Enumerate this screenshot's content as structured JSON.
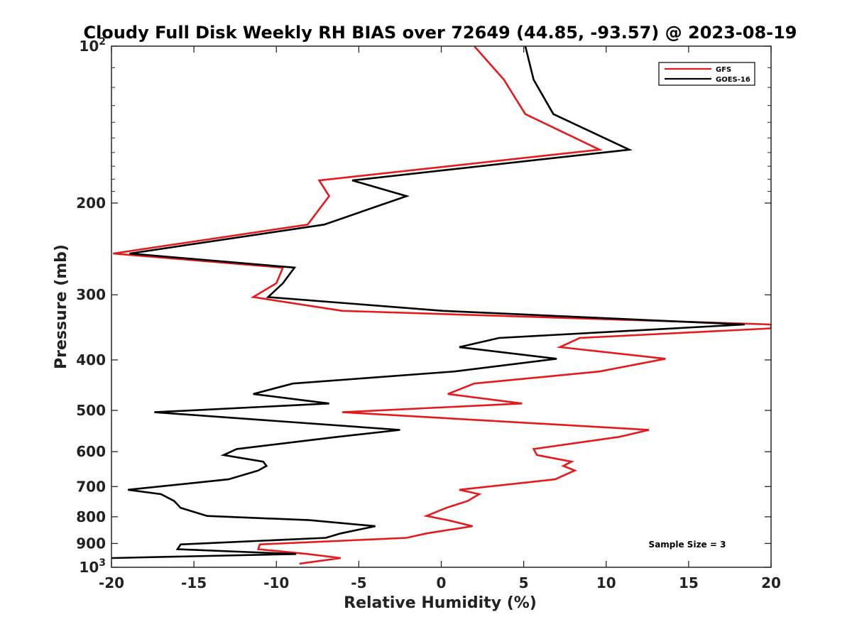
{
  "chart_data": {
    "type": "line",
    "title": "Cloudy Full Disk Weekly RH BIAS over 72649 (44.85, -93.57) @ 2023-08-19",
    "xlabel": "Relative Humidity (%)",
    "ylabel": "Pressure (mb)",
    "xlim": [
      -20,
      20
    ],
    "ylim": [
      100,
      1000
    ],
    "yscale": "log",
    "y_reversed": true,
    "grid": false,
    "legend_position": "top-right",
    "xticks": [
      "-20",
      "-15",
      "-10",
      "-5",
      "0",
      "5",
      "10",
      "15",
      "20"
    ],
    "yticks": [
      {
        "value": 100,
        "base": "10",
        "exp": "2"
      },
      {
        "value": 200,
        "label": "200"
      },
      {
        "value": 300,
        "label": "300"
      },
      {
        "value": 400,
        "label": "400"
      },
      {
        "value": 500,
        "label": "500"
      },
      {
        "value": 600,
        "label": "600"
      },
      {
        "value": 700,
        "label": "700"
      },
      {
        "value": 800,
        "label": "800"
      },
      {
        "value": 900,
        "label": "900"
      },
      {
        "value": 1000,
        "base": "10",
        "exp": "3"
      }
    ],
    "annotation": "Sample Size = 3",
    "series": [
      {
        "name": "GFS",
        "color": "#e41a1c",
        "points": [
          [
            2.0,
            100
          ],
          [
            3.8,
            116
          ],
          [
            5.1,
            135
          ],
          [
            9.6,
            158
          ],
          [
            -7.4,
            181
          ],
          [
            -6.8,
            194
          ],
          [
            -8.1,
            220
          ],
          [
            -19.9,
            250
          ],
          [
            -9.6,
            266
          ],
          [
            -10.0,
            285
          ],
          [
            -11.4,
            303
          ],
          [
            -6.0,
            322
          ],
          [
            20.0,
            342
          ],
          [
            20.0,
            348
          ],
          [
            8.4,
            363
          ],
          [
            7.2,
            378
          ],
          [
            13.6,
            398
          ],
          [
            9.6,
            421
          ],
          [
            2.0,
            444
          ],
          [
            0.4,
            465
          ],
          [
            4.9,
            485
          ],
          [
            -6.0,
            504
          ],
          [
            12.6,
            545
          ],
          [
            10.8,
            562
          ],
          [
            5.6,
            593
          ],
          [
            5.8,
            609
          ],
          [
            7.9,
            627
          ],
          [
            7.4,
            639
          ],
          [
            8.1,
            652
          ],
          [
            6.9,
            678
          ],
          [
            1.1,
            710
          ],
          [
            2.3,
            724
          ],
          [
            1.6,
            746
          ],
          [
            0.3,
            769
          ],
          [
            -0.9,
            797
          ],
          [
            0.4,
            812
          ],
          [
            1.9,
            834
          ],
          [
            -0.9,
            861
          ],
          [
            -2.1,
            878
          ],
          [
            -11.0,
            904
          ],
          [
            -11.1,
            923
          ],
          [
            -8.1,
            943
          ],
          [
            -6.1,
            960
          ],
          [
            -8.6,
            984
          ]
        ]
      },
      {
        "name": "GOES-16",
        "color": "#000000",
        "points": [
          [
            5.1,
            100
          ],
          [
            5.6,
            116
          ],
          [
            6.8,
            135
          ],
          [
            11.4,
            158
          ],
          [
            -5.4,
            181
          ],
          [
            -2.1,
            194
          ],
          [
            -7.1,
            220
          ],
          [
            -18.9,
            250
          ],
          [
            -8.9,
            266
          ],
          [
            -9.6,
            285
          ],
          [
            -10.5,
            303
          ],
          [
            0.1,
            322
          ],
          [
            18.4,
            342
          ],
          [
            3.5,
            363
          ],
          [
            1.1,
            378
          ],
          [
            7.0,
            398
          ],
          [
            0.8,
            421
          ],
          [
            -9.0,
            444
          ],
          [
            -11.4,
            465
          ],
          [
            -6.8,
            485
          ],
          [
            -17.4,
            504
          ],
          [
            -2.5,
            545
          ],
          [
            -6.3,
            562
          ],
          [
            -12.4,
            593
          ],
          [
            -13.2,
            609
          ],
          [
            -10.8,
            627
          ],
          [
            -10.6,
            639
          ],
          [
            -11.1,
            652
          ],
          [
            -12.9,
            678
          ],
          [
            -19.0,
            710
          ],
          [
            -17.0,
            724
          ],
          [
            -16.2,
            746
          ],
          [
            -15.8,
            769
          ],
          [
            -14.2,
            797
          ],
          [
            -8.0,
            812
          ],
          [
            -4.0,
            834
          ],
          [
            -6.1,
            861
          ],
          [
            -7.0,
            878
          ],
          [
            -15.8,
            904
          ],
          [
            -16.0,
            923
          ],
          [
            -8.8,
            943
          ],
          [
            -20.0,
            960
          ]
        ]
      }
    ]
  }
}
